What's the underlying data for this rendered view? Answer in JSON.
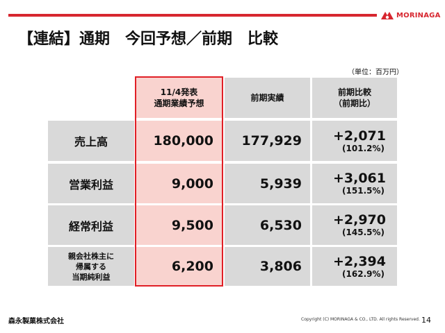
{
  "slide": {
    "title": "【連結】通期　今回予想／前期　比較",
    "unit": "（単位：百万円）",
    "brand": {
      "name": "MORINAGA",
      "color": "#d7262f"
    },
    "company": "森永製菓株式会社",
    "copyright": "Copyright (C) MORINAGA & CO., LTD. All rights Reserved.",
    "page_number": "14"
  },
  "table": {
    "headers": {
      "forecast": "11/4発表\n通期業績予想",
      "prior": "前期実績",
      "compare": "前期比較\n（前期比）"
    },
    "rows": [
      {
        "label": "売上高",
        "forecast": "180,000",
        "prior": "177,929",
        "diff": "+2,071",
        "pct": "(101.2%)"
      },
      {
        "label": "営業利益",
        "forecast": "9,000",
        "prior": "5,939",
        "diff": "+3,061",
        "pct": "(151.5%)"
      },
      {
        "label": "経常利益",
        "forecast": "9,500",
        "prior": "6,530",
        "diff": "+2,970",
        "pct": "(145.5%)"
      },
      {
        "label": "親会社株主に\n帰属する\n当期純利益",
        "forecast": "6,200",
        "prior": "3,806",
        "diff": "+2,394",
        "pct": "(162.9%)"
      }
    ],
    "highlight_color": "#f9d3cf",
    "frame_color": "#e01f26"
  }
}
